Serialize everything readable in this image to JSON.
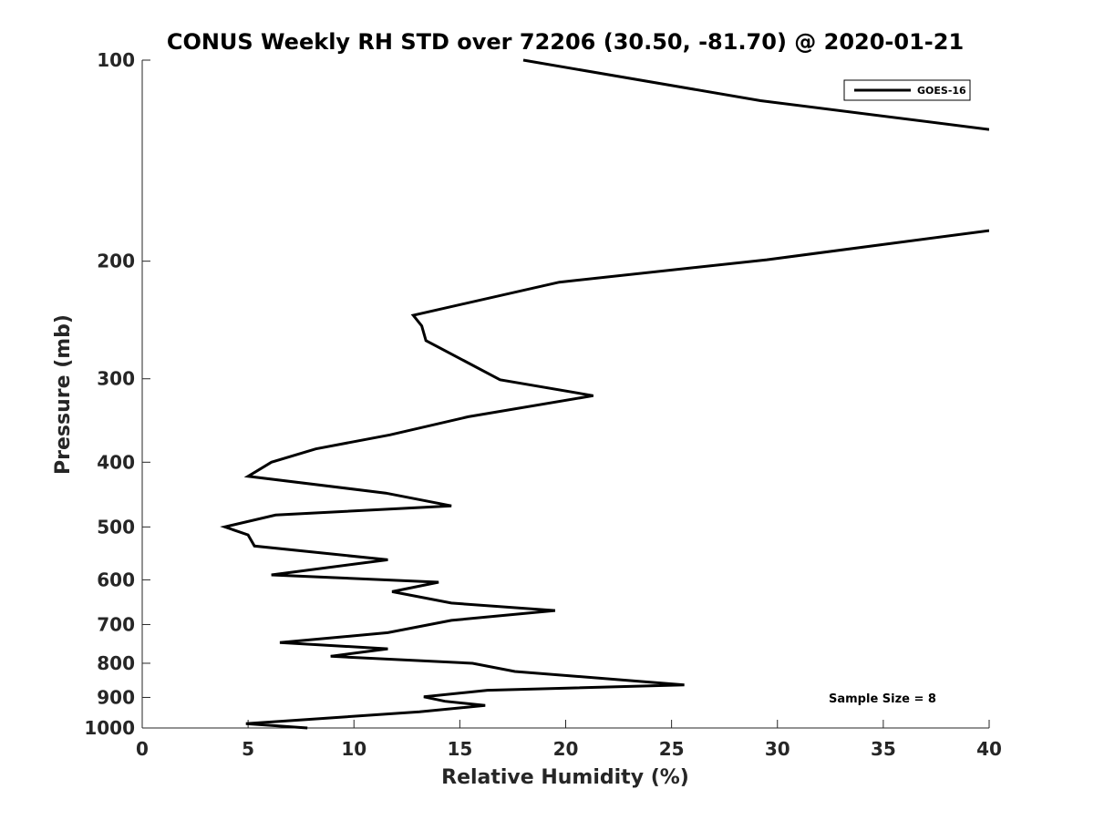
{
  "chart_data": {
    "type": "line",
    "title": "CONUS Weekly RH STD over 72206 (30.50, -81.70) @ 2020-01-21",
    "xlabel": "Relative Humidity (%)",
    "ylabel": "Pressure (mb)",
    "xlim": [
      0,
      40
    ],
    "ylim": [
      100,
      1000
    ],
    "y_scale": "log",
    "y_reversed": true,
    "grid": false,
    "legend_position": "top-right",
    "x_ticks": [
      "0",
      "5",
      "10",
      "15",
      "20",
      "25",
      "30",
      "35",
      "40"
    ],
    "y_ticks": [
      "100",
      "200",
      "300",
      "400",
      "500",
      "600",
      "700",
      "800",
      "900",
      "1000"
    ],
    "series": [
      {
        "name": "GOES-16",
        "color": "#000000",
        "x": [
          18.0,
          29.2,
          40,
          null,
          40,
          29.5,
          19.7,
          12.8,
          13.2,
          13.4,
          16.9,
          21.3,
          15.4,
          11.7,
          8.2,
          6.1,
          5.0,
          11.5,
          14.6,
          6.3,
          3.9,
          5.0,
          5.3,
          11.6,
          6.1,
          14.0,
          11.8,
          14.6,
          19.5,
          14.6,
          11.6,
          6.5,
          11.6,
          8.9,
          15.6,
          17.6,
          25.6,
          16.3,
          13.3,
          14.3,
          16.2,
          13.1,
          4.9,
          7.8
        ],
        "y": [
          100,
          115,
          127,
          null,
          180,
          199,
          215,
          241,
          250,
          263,
          301,
          318,
          342,
          364,
          382,
          400,
          420,
          445,
          465,
          480,
          500,
          514,
          534,
          560,
          590,
          605,
          625,
          650,
          667,
          690,
          720,
          745,
          761,
          781,
          800,
          823,
          862,
          878,
          898,
          912,
          925,
          946,
          985,
          1000
        ]
      }
    ],
    "annotations": [
      "Sample Size = 8"
    ]
  }
}
